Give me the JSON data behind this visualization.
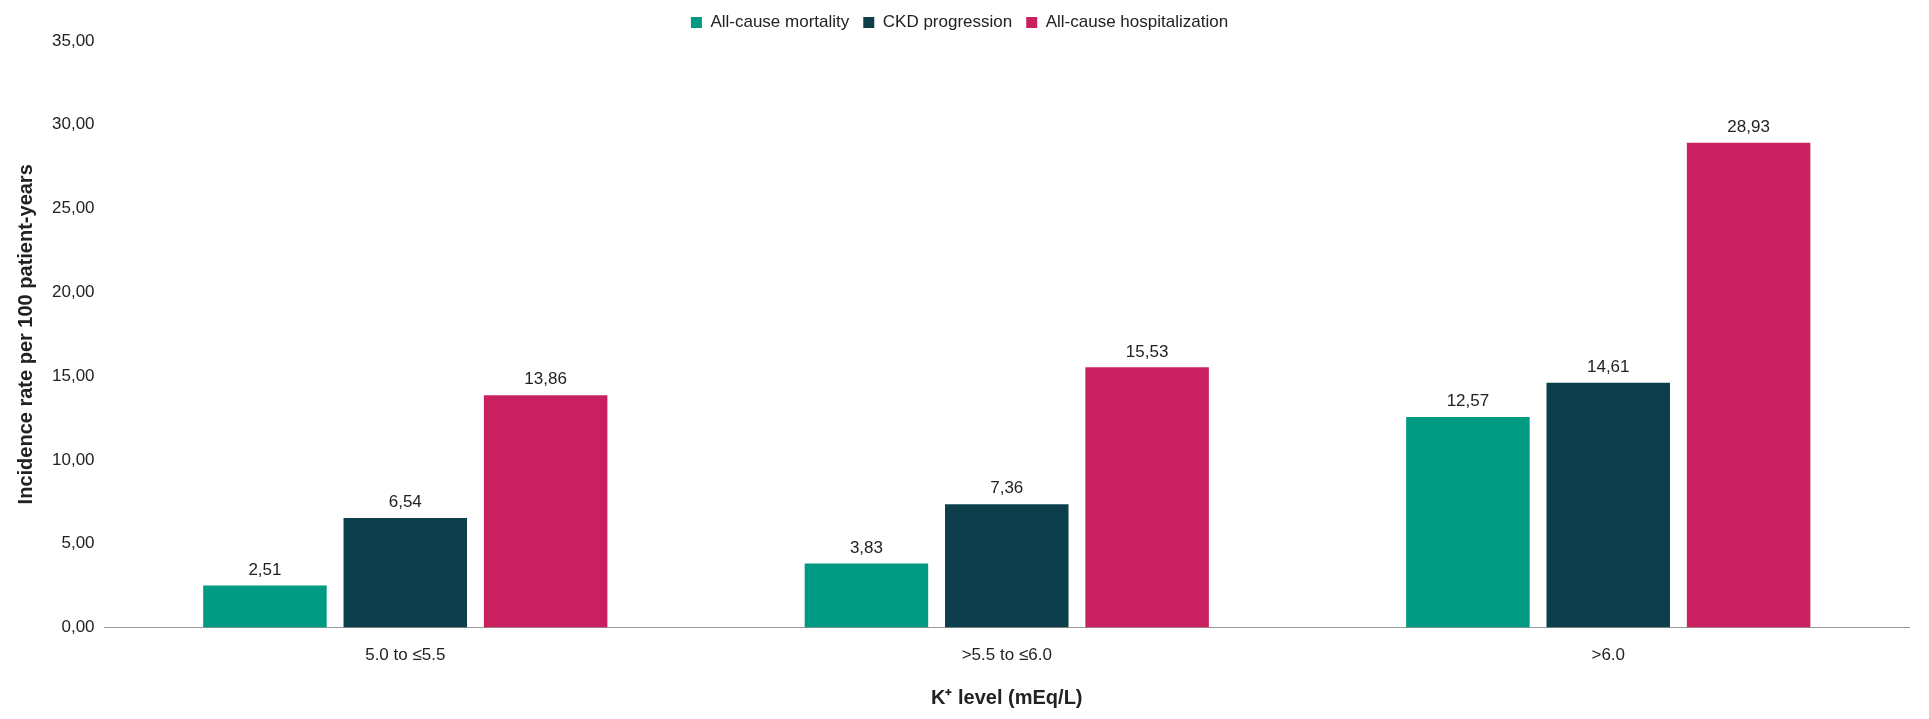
{
  "chart_data": {
    "type": "bar",
    "xlabel": "K⁺ level (mEq/L)",
    "ylabel": "Incidence rate per 100 patient-years",
    "categories": [
      "5.0 to ≤5.5",
      ">5.5 to ≤6.0",
      ">6.0"
    ],
    "series": [
      {
        "name": "All-cause mortality",
        "color": "#009a82",
        "values": [
          2.51,
          3.83,
          12.57
        ],
        "value_labels": [
          "2,51",
          "3,83",
          "12,57"
        ]
      },
      {
        "name": "CKD progression",
        "color": "#0c3f4b",
        "values": [
          6.54,
          7.36,
          14.61
        ],
        "value_labels": [
          "6,54",
          "7,36",
          "14,61"
        ]
      },
      {
        "name": "All-cause hospitalization",
        "color": "#c92160",
        "values": [
          13.86,
          15.53,
          28.93
        ],
        "value_labels": [
          "13,86",
          "15,53",
          "28,93"
        ]
      }
    ],
    "ylim": [
      0,
      35
    ],
    "yticks": [
      {
        "value": 0,
        "label": "0,00"
      },
      {
        "value": 5,
        "label": "5,00"
      },
      {
        "value": 10,
        "label": "10,00"
      },
      {
        "value": 15,
        "label": "15,00"
      },
      {
        "value": 20,
        "label": "20,00"
      },
      {
        "value": 25,
        "label": "25,00"
      },
      {
        "value": 30,
        "label": "30,00"
      },
      {
        "value": 35,
        "label": "35,00"
      }
    ],
    "grid": false,
    "legend": "top"
  }
}
